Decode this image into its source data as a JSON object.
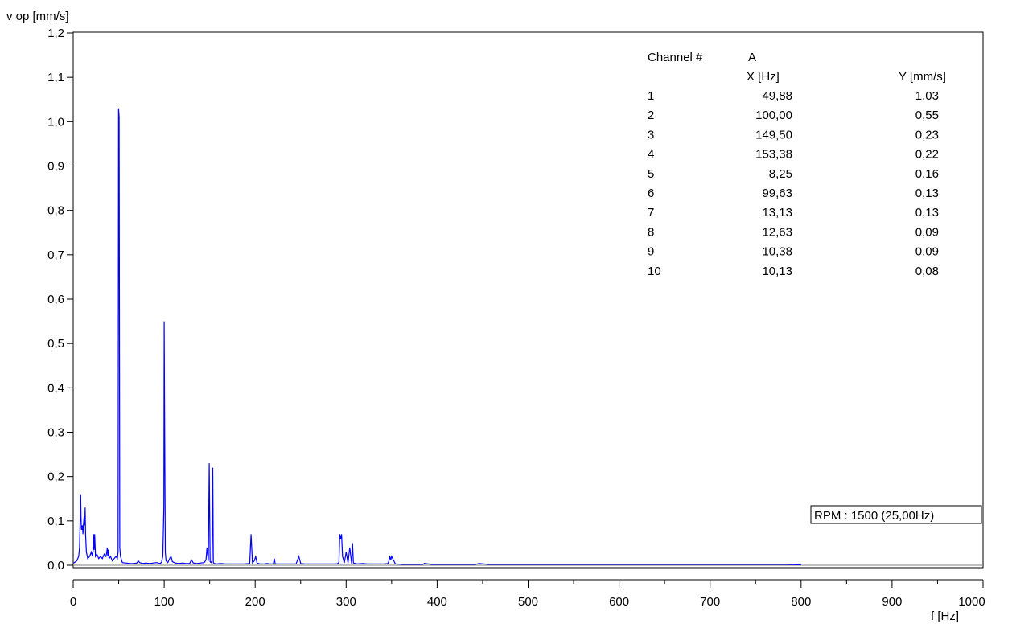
{
  "chart_data": {
    "type": "line",
    "ylabel": "v op [mm/s]",
    "xlabel": "f [Hz]",
    "xlim": [
      0,
      1000
    ],
    "ylim": [
      0,
      1.2
    ],
    "x_ticks": [
      0,
      100,
      200,
      300,
      400,
      500,
      600,
      700,
      800,
      900,
      1000
    ],
    "y_ticks": [
      "0,0",
      "0,1",
      "0,2",
      "0,3",
      "0,4",
      "0,5",
      "0,6",
      "0,7",
      "0,8",
      "0,9",
      "1,0",
      "1,1",
      "1,2"
    ],
    "y_tick_values": [
      0,
      0.1,
      0.2,
      0.3,
      0.4,
      0.5,
      0.6,
      0.7,
      0.8,
      0.9,
      1.0,
      1.1,
      1.2
    ],
    "grid": false,
    "color": "#0000ff",
    "series": [
      {
        "x": [
          0.5,
          4,
          6,
          7,
          7.5,
          8,
          8.25,
          8.6,
          9,
          9.6,
          10.13,
          10.38,
          10.7,
          11.2,
          12,
          12.63,
          13.13,
          13.6,
          14.5,
          16,
          18,
          20,
          21,
          22,
          22.6,
          23,
          23.6,
          24.5,
          26,
          28,
          30,
          32,
          34,
          36,
          37,
          37.5,
          38,
          38.5,
          39.5,
          41,
          43,
          45,
          47,
          48.5,
          49.3,
          49.88,
          50.5,
          51.2,
          52,
          54,
          58,
          62,
          66,
          70,
          71.5,
          73,
          76,
          80,
          84,
          88,
          92,
          95,
          97,
          98.5,
          99.63,
          100,
          100.5,
          101.2,
          102,
          104,
          106,
          107.5,
          109,
          112,
          116,
          120,
          124,
          128,
          130,
          132,
          136,
          140,
          144,
          146,
          147,
          148.5,
          149.5,
          150.5,
          151.5,
          152.5,
          153.38,
          154,
          155,
          158,
          162,
          168,
          175,
          182,
          188,
          194,
          195.5,
          197,
          199,
          200.5,
          202,
          205,
          210,
          213,
          216,
          220,
          221,
          222,
          226,
          232,
          238,
          245,
          248,
          250,
          254,
          262,
          270,
          278,
          286,
          290,
          292,
          293,
          294,
          295,
          296,
          298,
          300,
          302,
          304,
          306,
          307,
          308,
          312,
          318,
          324,
          330,
          336,
          342,
          346,
          347,
          348,
          349,
          350,
          354,
          362,
          372,
          382,
          384,
          386,
          394,
          404,
          414,
          424,
          432,
          440,
          442,
          446,
          456,
          470,
          490,
          510,
          530,
          550,
          570,
          590,
          600,
          610,
          620,
          640,
          660,
          680,
          700,
          720,
          740,
          752,
          754,
          760,
          780,
          800
        ],
        "y": [
          0.005,
          0.01,
          0.02,
          0.04,
          0.09,
          0.12,
          0.16,
          0.11,
          0.08,
          0.09,
          0.08,
          0.09,
          0.07,
          0.09,
          0.11,
          0.09,
          0.13,
          0.07,
          0.03,
          0.015,
          0.02,
          0.03,
          0.02,
          0.035,
          0.07,
          0.035,
          0.07,
          0.02,
          0.025,
          0.015,
          0.02,
          0.015,
          0.025,
          0.02,
          0.03,
          0.04,
          0.02,
          0.035,
          0.015,
          0.02,
          0.01,
          0.015,
          0.02,
          0.015,
          0.03,
          1.03,
          1.01,
          0.04,
          0.02,
          0.006,
          0.005,
          0.004,
          0.004,
          0.005,
          0.01,
          0.006,
          0.004,
          0.005,
          0.004,
          0.005,
          0.006,
          0.004,
          0.006,
          0.02,
          0.13,
          0.55,
          0.31,
          0.03,
          0.01,
          0.006,
          0.015,
          0.02,
          0.008,
          0.005,
          0.004,
          0.005,
          0.004,
          0.004,
          0.012,
          0.005,
          0.004,
          0.005,
          0.006,
          0.012,
          0.04,
          0.01,
          0.23,
          0.008,
          0.006,
          0.01,
          0.22,
          0.006,
          0.004,
          0.003,
          0.004,
          0.003,
          0.003,
          0.003,
          0.003,
          0.004,
          0.07,
          0.005,
          0.01,
          0.02,
          0.005,
          0.003,
          0.003,
          0.004,
          0.003,
          0.003,
          0.015,
          0.003,
          0.003,
          0.003,
          0.003,
          0.003,
          0.02,
          0.004,
          0.003,
          0.003,
          0.003,
          0.003,
          0.003,
          0.003,
          0.006,
          0.07,
          0.06,
          0.07,
          0.02,
          0.005,
          0.03,
          0.005,
          0.04,
          0.004,
          0.05,
          0.005,
          0.003,
          0.004,
          0.003,
          0.003,
          0.003,
          0.003,
          0.004,
          0.01,
          0.02,
          0.012,
          0.02,
          0.003,
          0.002,
          0.002,
          0.002,
          0.002,
          0.004,
          0.002,
          0.002,
          0.002,
          0.002,
          0.002,
          0.002,
          0.002,
          0.004,
          0.002,
          0.002,
          0.002,
          0.002,
          0.002,
          0.002,
          0.002,
          0.002,
          0.002,
          0.002,
          0.002,
          0.002,
          0.002,
          0.002,
          0.002,
          0.002,
          0.002,
          0.002,
          0.002,
          0.002,
          0.002,
          0.001
        ]
      }
    ],
    "table": {
      "channel_label": "Channel #",
      "channel_value": "A",
      "x_header": "X [Hz]",
      "y_header": "Y [mm/s]",
      "rows": [
        {
          "n": "1",
          "x": "49,88",
          "y": "1,03"
        },
        {
          "n": "2",
          "x": "100,00",
          "y": "0,55"
        },
        {
          "n": "3",
          "x": "149,50",
          "y": "0,23"
        },
        {
          "n": "4",
          "x": "153,38",
          "y": "0,22"
        },
        {
          "n": "5",
          "x": "8,25",
          "y": "0,16"
        },
        {
          "n": "6",
          "x": "99,63",
          "y": "0,13"
        },
        {
          "n": "7",
          "x": "13,13",
          "y": "0,13"
        },
        {
          "n": "8",
          "x": "12,63",
          "y": "0,09"
        },
        {
          "n": "9",
          "x": "10,38",
          "y": "0,09"
        },
        {
          "n": "10",
          "x": "10,13",
          "y": "0,08"
        }
      ]
    },
    "rpm_label": "RPM : 1500 (25,00Hz)"
  }
}
